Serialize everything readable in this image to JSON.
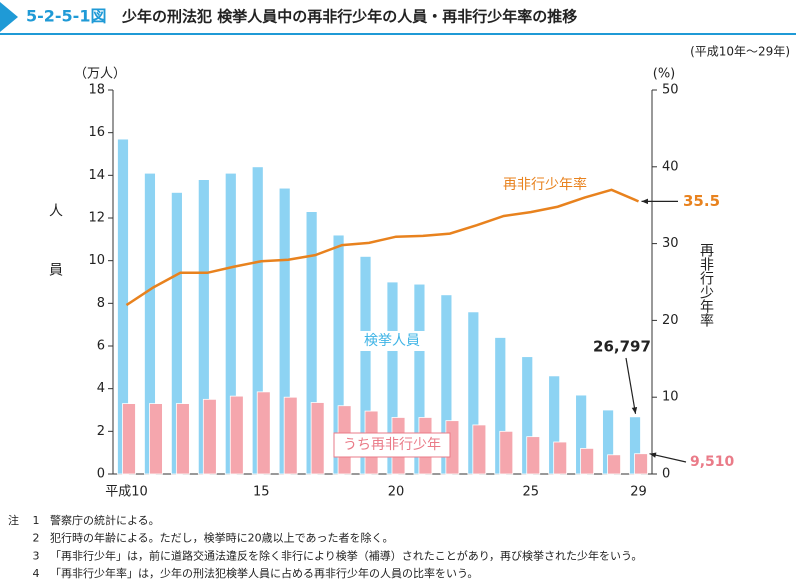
{
  "chart_data": {
    "type": "bar-line",
    "figure_label": "5-2-5-1図",
    "title": "少年の刑法犯 検挙人員中の再非行少年の人員・再非行少年率の推移",
    "subtitle": "(平成10年～29年)",
    "y_unit": "（万人）",
    "y2_unit": "(%)",
    "ylabel": "人員",
    "y2label": "再非行少年率",
    "categories": [
      "平成10",
      null,
      null,
      null,
      null,
      "15",
      null,
      null,
      null,
      null,
      "20",
      null,
      null,
      null,
      null,
      "25",
      null,
      null,
      null,
      "29"
    ],
    "series": [
      {
        "name": "検挙人員",
        "type": "bar",
        "color": "#8dd3f3",
        "text_color": "#3fb4e6",
        "values": [
          15.7,
          14.1,
          13.2,
          13.8,
          14.1,
          14.4,
          13.4,
          12.3,
          11.2,
          10.2,
          9.0,
          8.9,
          8.4,
          7.6,
          6.4,
          5.5,
          4.6,
          3.7,
          3.0,
          2.6797
        ],
        "value_labels": [
          null,
          null,
          null,
          null,
          null,
          null,
          null,
          null,
          null,
          null,
          null,
          null,
          null,
          null,
          null,
          null,
          null,
          null,
          null,
          "26,797"
        ]
      },
      {
        "name": "うち再非行少年",
        "type": "bar",
        "color": "#f5a6ad",
        "text_color": "#ea7b88",
        "values": [
          3.3,
          3.3,
          3.3,
          3.5,
          3.65,
          3.85,
          3.6,
          3.35,
          3.2,
          2.95,
          2.65,
          2.65,
          2.5,
          2.3,
          2.0,
          1.75,
          1.5,
          1.2,
          0.9,
          0.951
        ],
        "value_labels": [
          null,
          null,
          null,
          null,
          null,
          null,
          null,
          null,
          null,
          null,
          null,
          null,
          null,
          null,
          null,
          null,
          null,
          null,
          null,
          "9,510"
        ]
      },
      {
        "name": "再非行少年率",
        "type": "line",
        "axis": "y2",
        "color": "#e8821e",
        "text_color": "#e8821e",
        "values": [
          22.0,
          24.3,
          26.2,
          26.2,
          27.0,
          27.7,
          27.9,
          28.5,
          29.8,
          30.1,
          30.9,
          31.0,
          31.3,
          32.4,
          33.6,
          34.1,
          34.8,
          36.0,
          37.0,
          35.5
        ]
      }
    ],
    "ylim": [
      0,
      18
    ],
    "yticks": [
      0,
      2,
      4,
      6,
      8,
      10,
      12,
      14,
      16,
      18
    ],
    "y2lim": [
      0,
      50
    ],
    "y2ticks": [
      0,
      10,
      20,
      30,
      40,
      50
    ],
    "grid": false
  },
  "notes": {
    "label": "注",
    "items": [
      {
        "number": "1",
        "text": "警察庁の統計による。"
      },
      {
        "number": "2",
        "text": "犯行時の年齢による。ただし，検挙時に20歳以上であった者を除く。"
      },
      {
        "number": "3",
        "text": "「再非行少年」は，前に道路交通法違反を除く非行により検挙（補導）されたことがあり，再び検挙された少年をいう。"
      },
      {
        "number": "4",
        "text": "「再非行少年率」は，少年の刑法犯検挙人員に占める再非行少年の人員の比率をいう。"
      }
    ]
  }
}
